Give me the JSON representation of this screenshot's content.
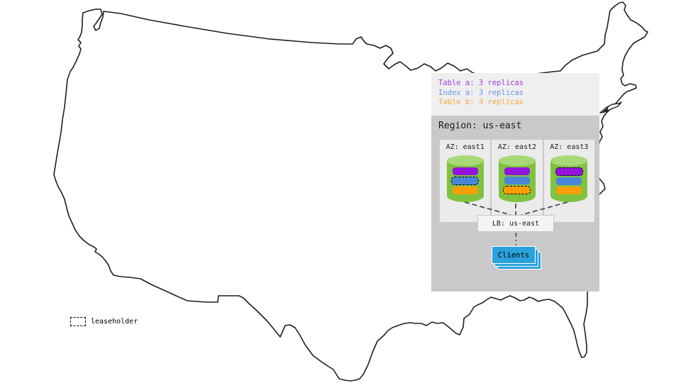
{
  "legend": {
    "items": [
      {
        "label": "Table a: 3 replicas",
        "color": "#a43ce0"
      },
      {
        "label": "Index a: 3 replicas",
        "color": "#6d95e9"
      },
      {
        "label": "Table b: 3 replicas",
        "color": "#f7a73c"
      }
    ]
  },
  "colors": {
    "table_a": "#9414dd",
    "index_a": "#4a86d8",
    "table_b": "#fb9e00",
    "cylinder_body": "#7fc241",
    "cylinder_top": "#a9d977",
    "clients_blue": "#2aa2dc",
    "region_bg": "#c9c9c9",
    "az_bg": "#ebebeb",
    "legend_bg": "#efefef"
  },
  "region": {
    "title": "Region: us-east",
    "zones": [
      {
        "label": "AZ: east1",
        "replicas": [
          {
            "key": "table_a",
            "leaseholder": false
          },
          {
            "key": "index_a",
            "leaseholder": true
          },
          {
            "key": "table_b",
            "leaseholder": false
          }
        ]
      },
      {
        "label": "AZ: east2",
        "replicas": [
          {
            "key": "table_a",
            "leaseholder": false
          },
          {
            "key": "index_a",
            "leaseholder": false
          },
          {
            "key": "table_b",
            "leaseholder": true
          }
        ]
      },
      {
        "label": "AZ: east3",
        "replicas": [
          {
            "key": "table_a",
            "leaseholder": true
          },
          {
            "key": "index_a",
            "leaseholder": false
          },
          {
            "key": "table_b",
            "leaseholder": false
          }
        ]
      }
    ]
  },
  "load_balancer": {
    "label": "LB: us-east"
  },
  "clients": {
    "label": "Clients"
  },
  "map_legend": {
    "label": "leaseholder"
  }
}
